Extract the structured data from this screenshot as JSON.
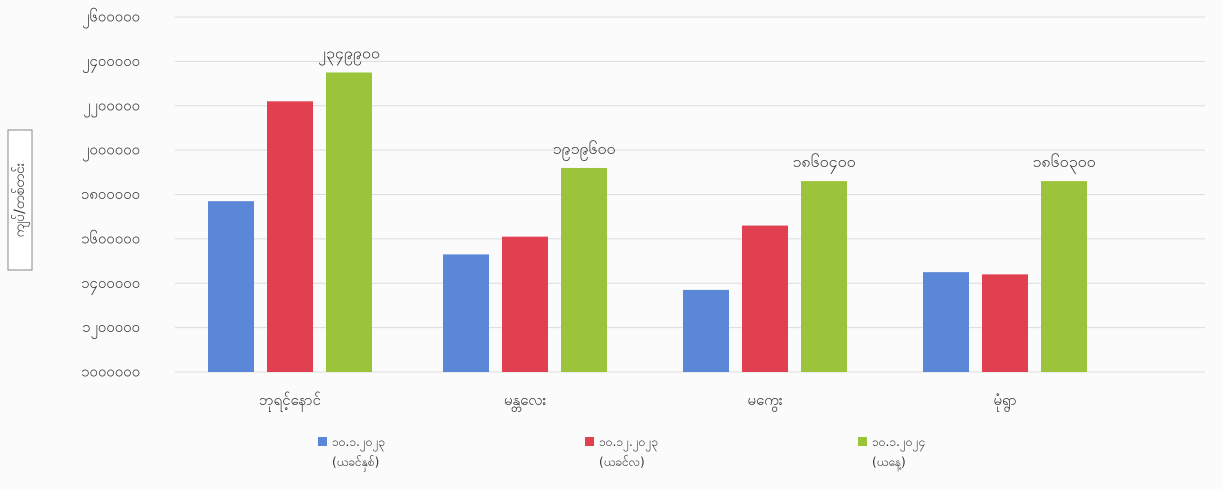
{
  "chart_data": {
    "type": "bar",
    "title": "",
    "xlabel": "",
    "ylabel": "ကျပ်/တစ်တင်း",
    "categories": [
      "ဘုရင့်နောင်",
      "မန္တလေး",
      "မကွေး",
      "မုံရွာ"
    ],
    "category_values": [
      1,
      2,
      3,
      4
    ],
    "yticks": [
      "၂၆၀၀၀၀၀",
      "၂၄၀၀၀၀၀",
      "၂၂၀၀၀၀၀",
      "၂၀၀၀၀၀၀",
      "၁၈၀၀၀၀၀",
      "၁၆၀၀၀၀၀",
      "၁၄၀၀၀၀၀",
      "၁၂၀၀၀၀၀",
      "၁၀၀၀၀၀၀"
    ],
    "ytick_values": [
      2600000,
      2400000,
      2200000,
      2000000,
      1800000,
      1600000,
      1400000,
      1200000,
      1000000
    ],
    "ylim": [
      1000000,
      2600000
    ],
    "grid": true,
    "legend_position": "bottom",
    "series": [
      {
        "name": "၁၀.၁.၂၀၂၃",
        "sublabel": "(ယခင်နှစ်)",
        "color": "#5b87d9",
        "values": [
          1770000,
          1530000,
          1370000,
          1450000
        ]
      },
      {
        "name": "၁၀.၁၂.၂၀၂၃",
        "sublabel": "(ယခင်လ)",
        "color": "#e0404f",
        "values": [
          2220000,
          1610000,
          1660000,
          1440000
        ]
      },
      {
        "name": "၁၀.၁.၂၀၂၄",
        "sublabel": "(ယနေ့)",
        "color": "#9cc43a",
        "values": [
          2349900,
          1919600,
          1860400,
          1860300
        ]
      }
    ],
    "data_labels": [
      {
        "series": 2,
        "category": 0,
        "text": "၂၃၄၉၉၀၀"
      },
      {
        "series": 2,
        "category": 1,
        "text": "၁၉၁၉၆၀၀"
      },
      {
        "series": 2,
        "category": 2,
        "text": "၁၈၆၀၄၀၀"
      },
      {
        "series": 2,
        "category": 3,
        "text": "၁၈၆၀၃၀၀"
      }
    ]
  }
}
